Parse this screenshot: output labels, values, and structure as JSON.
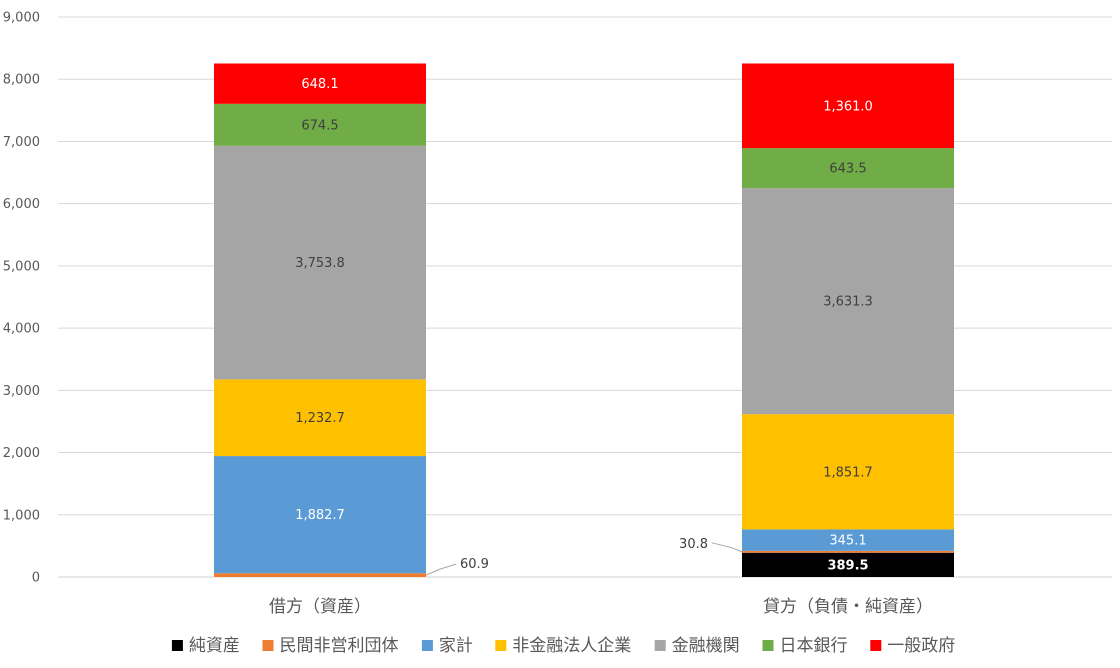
{
  "chart_data": {
    "type": "bar",
    "stacked": true,
    "categories": [
      "借方（資産）",
      "貸方（負債・純資産）"
    ],
    "ylim": [
      0,
      9000
    ],
    "yticks": [
      0,
      1000,
      2000,
      3000,
      4000,
      5000,
      6000,
      7000,
      8000,
      9000
    ],
    "ytick_labels": [
      "0",
      "1,000",
      "2,000",
      "3,000",
      "4,000",
      "5,000",
      "6,000",
      "7,000",
      "8,000",
      "9,000"
    ],
    "grid": true,
    "legend_position": "bottom",
    "series": [
      {
        "name": "純資産",
        "color": "#000000",
        "label_color": "#ffffff",
        "values": [
          0,
          389.5
        ],
        "labels": [
          "",
          "389.5"
        ]
      },
      {
        "name": "民間非営利団体",
        "color": "#ED7D31",
        "label_color": "#404040",
        "values": [
          60.9,
          30.8
        ],
        "labels": [
          "60.9",
          "30.8"
        ]
      },
      {
        "name": "家計",
        "color": "#5B9BD5",
        "label_color": "#ffffff",
        "values": [
          1882.7,
          345.1
        ],
        "labels": [
          "1,882.7",
          "345.1"
        ]
      },
      {
        "name": "非金融法人企業",
        "color": "#FFC000",
        "label_color": "#404040",
        "values": [
          1232.7,
          1851.7
        ],
        "labels": [
          "1,232.7",
          "1,851.7"
        ]
      },
      {
        "name": "金融機関",
        "color": "#A5A5A5",
        "label_color": "#404040",
        "values": [
          3753.8,
          3631.3
        ],
        "labels": [
          "3,753.8",
          "3,631.3"
        ]
      },
      {
        "name": "日本銀行",
        "color": "#70AD47",
        "label_color": "#404040",
        "values": [
          674.5,
          643.5
        ],
        "labels": [
          "674.5",
          "643.5"
        ]
      },
      {
        "name": "一般政府",
        "color": "#FF0000",
        "label_color": "#ffffff",
        "values": [
          648.1,
          1361.0
        ],
        "labels": [
          "648.1",
          "1,361.0"
        ]
      }
    ]
  }
}
